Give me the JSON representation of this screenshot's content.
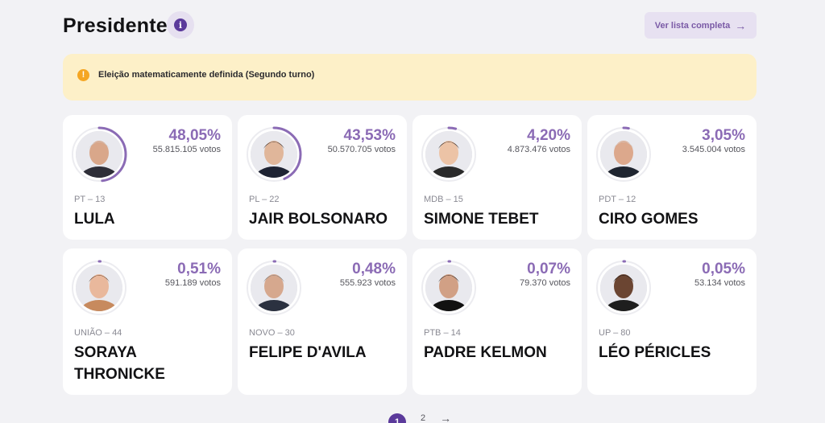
{
  "header": {
    "title": "Presidente",
    "info_icon": "info-icon",
    "full_list_label": "Ver lista completa",
    "full_list_icon": "arrow-right-icon"
  },
  "alert": {
    "icon": "warning-icon",
    "message": "Eleição matematicamente definida (Segundo turno)"
  },
  "colors": {
    "accent": "#8b6bb5",
    "accent_dark": "#5b3a9b",
    "alert_bg": "#fdf0c8",
    "page_bg": "#f2f2f5"
  },
  "candidates": [
    {
      "name": "LULA",
      "party": "PT – 13",
      "percent": "48,05%",
      "votes": "55.815.105 votos",
      "share": 0.4805,
      "skin": "#d9a78a",
      "hair": "#cfcfcf",
      "suit": "#2e2e38"
    },
    {
      "name": "JAIR BOLSONARO",
      "party": "PL – 22",
      "percent": "43,53%",
      "votes": "50.570.705 votos",
      "share": 0.4353,
      "skin": "#e0b69a",
      "hair": "#3a2f2a",
      "suit": "#1e2333"
    },
    {
      "name": "SIMONE TEBET",
      "party": "MDB – 15",
      "percent": "4,20%",
      "votes": "4.873.476 votos",
      "share": 0.042,
      "skin": "#ecc3a6",
      "hair": "#2a1d17",
      "suit": "#2a2a2a"
    },
    {
      "name": "CIRO GOMES",
      "party": "PDT – 12",
      "percent": "3,05%",
      "votes": "3.545.004 votos",
      "share": 0.0305,
      "skin": "#dca88c",
      "hair": "#d8d8d8",
      "suit": "#1f2530"
    },
    {
      "name": "SORAYA THRONICKE",
      "party": "UNIÃO – 44",
      "percent": "0,51%",
      "votes": "591.189 votos",
      "share": 0.0051,
      "skin": "#e9b89c",
      "hair": "#5a3b25",
      "suit": "#c78a5e"
    },
    {
      "name": "FELIPE D'AVILA",
      "party": "NOVO – 30",
      "percent": "0,48%",
      "votes": "555.923 votos",
      "share": 0.0048,
      "skin": "#d6a88e",
      "hair": "#7a7a7a",
      "suit": "#2b3140"
    },
    {
      "name": "PADRE KELMON",
      "party": "PTB – 14",
      "percent": "0,07%",
      "votes": "79.370 votos",
      "share": 0.0007,
      "skin": "#d1a085",
      "hair": "#2e2622",
      "suit": "#111111"
    },
    {
      "name": "LÉO PÉRICLES",
      "party": "UP – 80",
      "percent": "0,05%",
      "votes": "53.134 votos",
      "share": 0.0005,
      "skin": "#6b4532",
      "hair": "#1a1411",
      "suit": "#1e1e1e"
    }
  ],
  "pagination": {
    "current": "1",
    "next_page": "2",
    "next_icon": "arrow-right-icon"
  }
}
